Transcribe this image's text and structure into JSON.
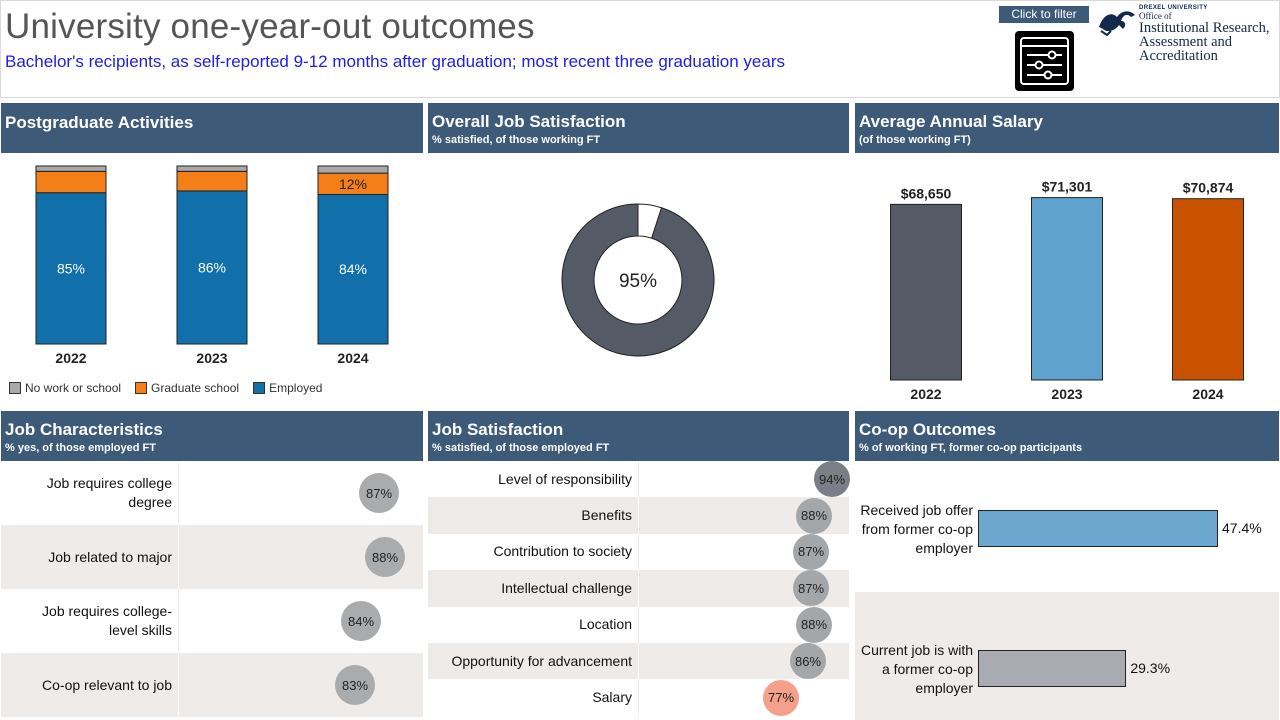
{
  "header": {
    "title": "University one-year-out outcomes",
    "subtitle": "Bachelor's recipients, as self-reported 9-12 months after graduation; most recent three graduation years",
    "filter_label": "Click to filter",
    "filter_icon": "filter-sliders-icon",
    "logo": {
      "small": "DREXEL UNIVERSITY",
      "line1": "Office of",
      "line2": "Institutional Research,",
      "line3": "Assessment and",
      "line4": "Accreditation"
    }
  },
  "postgrad": {
    "title": "Postgraduate Activities",
    "legend": [
      {
        "label": "No work or school",
        "color": "#a9a9aa"
      },
      {
        "label": "Graduate school",
        "color": "#f47e17"
      },
      {
        "label": "Employed",
        "color": "#1170aa"
      }
    ],
    "chart_data": {
      "type": "bar",
      "stacked": true,
      "categories": [
        "2022",
        "2023",
        "2024"
      ],
      "series": [
        {
          "name": "Employed",
          "values": [
            85,
            86,
            84
          ],
          "color": "#1170aa"
        },
        {
          "name": "Graduate school",
          "values": [
            12,
            11,
            12
          ],
          "color": "#f47e17"
        },
        {
          "name": "No work or school",
          "values": [
            3,
            3,
            4
          ],
          "color": "#a9a9aa"
        }
      ],
      "visible_labels": [
        [
          "85%",
          "",
          ""
        ],
        [
          "86%",
          "",
          ""
        ],
        [
          "84%",
          "12%",
          ""
        ]
      ],
      "ylim": [
        0,
        100
      ],
      "grid": false,
      "legend_position": "bottom"
    }
  },
  "overall_satisfaction": {
    "title": "Overall Job Satisfaction",
    "subtitle": "% satisfied, of those working FT",
    "chart_data": {
      "type": "pie",
      "donut": true,
      "slices": [
        {
          "name": "Satisfied",
          "value": 95,
          "color": "#555b66"
        },
        {
          "name": "Not satisfied",
          "value": 5,
          "color": "#ffffff"
        }
      ],
      "center_label": "95%"
    }
  },
  "salary": {
    "title": "Average Annual Salary",
    "subtitle": "(of those working FT)",
    "chart_data": {
      "type": "bar",
      "categories": [
        "2022",
        "2023",
        "2024"
      ],
      "values": [
        68650,
        71301,
        70874
      ],
      "labels": [
        "$68,650",
        "$71,301",
        "$70,874"
      ],
      "colors": [
        "#555b66",
        "#5fa2ce",
        "#c85200"
      ],
      "ylim": [
        0,
        77000
      ],
      "grid": false
    }
  },
  "job_char": {
    "title": "Job Characteristics",
    "subtitle": "% yes, of those employed FT",
    "rows": [
      {
        "label": "Job requires college degree",
        "value": "87%",
        "pct": 87
      },
      {
        "label": "Job related to major",
        "value": "88%",
        "pct": 88
      },
      {
        "label": "Job requires college-level skills",
        "value": "84%",
        "pct": 84
      },
      {
        "label": "Co-op relevant to job",
        "value": "83%",
        "pct": 83
      }
    ]
  },
  "job_sat": {
    "title": "Job Satisfaction",
    "subtitle": "% satisfied, of those employed FT",
    "rows": [
      {
        "label": "Level of responsibility",
        "value": "94%",
        "pct": 94,
        "color": "#7a7f87"
      },
      {
        "label": "Benefits",
        "value": "88%",
        "pct": 88,
        "color": "#a4a7aa"
      },
      {
        "label": "Contribution to society",
        "value": "87%",
        "pct": 87,
        "color": "#a4a7aa"
      },
      {
        "label": "Intellectual challenge",
        "value": "87%",
        "pct": 87,
        "color": "#a4a7aa"
      },
      {
        "label": "Location",
        "value": "88%",
        "pct": 88,
        "color": "#a4a7aa"
      },
      {
        "label": "Opportunity for advancement",
        "value": "86%",
        "pct": 86,
        "color": "#a4a7aa"
      },
      {
        "label": "Salary",
        "value": "77%",
        "pct": 77,
        "color": "#f4a08a"
      }
    ]
  },
  "coop": {
    "title": "Co-op Outcomes",
    "subtitle": "% of working FT, former co-op participants",
    "chart_data": {
      "type": "bar",
      "orientation": "horizontal",
      "categories": [
        "Received job offer from former co-op employer",
        "Current job is with a former co-op employer"
      ],
      "values": [
        47.4,
        29.3
      ],
      "labels": [
        "47.4%",
        "29.3%"
      ],
      "colors": [
        "#6ca7d0",
        "#a9abb3"
      ],
      "xlim": [
        0,
        55
      ]
    }
  }
}
